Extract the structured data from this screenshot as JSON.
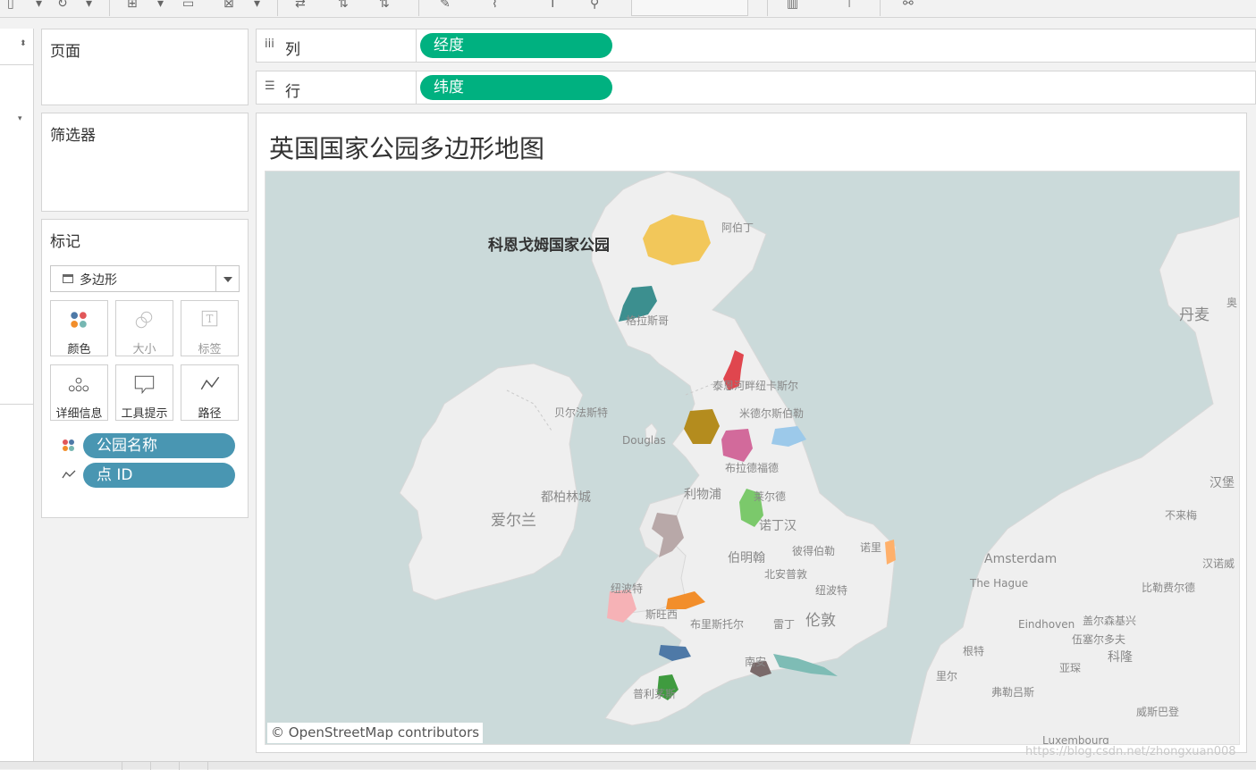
{
  "shelves": {
    "pages": "页面",
    "filters": "筛选器",
    "marks": "标记",
    "columns": {
      "label": "列",
      "pill": "经度"
    },
    "rows": {
      "label": "行",
      "pill": "纬度"
    }
  },
  "marks_card": {
    "mark_type": "多边形",
    "buttons": [
      "颜色",
      "大小",
      "标签",
      "详细信息",
      "工具提示",
      "路径"
    ],
    "fields": [
      "公园名称",
      "点 ID"
    ]
  },
  "sheet": {
    "title": "英国国家公园多边形地图",
    "highlight_label": "科恩戈姆国家公园",
    "attribution": "© OpenStreetMap contributors"
  },
  "map_places": {
    "aberdeen": "阿伯丁",
    "glasgow": "格拉斯哥",
    "belfast": "贝尔法斯特",
    "douglas": "Douglas",
    "newcastle": "泰恩河畔纽卡斯尔",
    "middlesbrough": "米德尔斯伯勒",
    "bradford": "布拉德福德",
    "liverpool": "利物浦",
    "leeds": "莱尔德",
    "nottingham": "诺丁汉",
    "dublin": "都柏林城",
    "ireland": "爱尔兰",
    "birmingham": "伯明翰",
    "peterborough": "彼得伯勒",
    "norwich": "诺里",
    "northampton": "北安普敦",
    "cardiff_region": "纽波特",
    "newport": "纽波特",
    "swansea": "斯旺西",
    "bristol": "布里斯托尔",
    "reading": "雷丁",
    "london": "伦敦",
    "southampton": "南安",
    "plymouth": "普利茅斯",
    "denmark": "丹麦",
    "hamburg": "汉堡",
    "bremen": "不来梅",
    "amsterdam": "Amsterdam",
    "the_hague": "The Hague",
    "hanover": "汉诺威",
    "bielefeld": "比勒费尔德",
    "eindhoven": "Eindhoven",
    "gelsenkirchen": "盖尔森基兴",
    "wuppertal": "伍塞尔多夫",
    "ghent": "根特",
    "cologne": "科隆",
    "brussels": "亚琛",
    "lille": "里尔",
    "frankfurt_ish": "弗勒吕斯",
    "wiesbaden": "威斯巴登",
    "luxembourg": "Luxembourg",
    "odense": "奥"
  },
  "watermark": "https://blog.csdn.net/zhongxuan008",
  "colors": {
    "pill_blue": "#4996b2",
    "pill_green": "#00b180",
    "sea": "#cbdada",
    "land": "#efefef"
  }
}
